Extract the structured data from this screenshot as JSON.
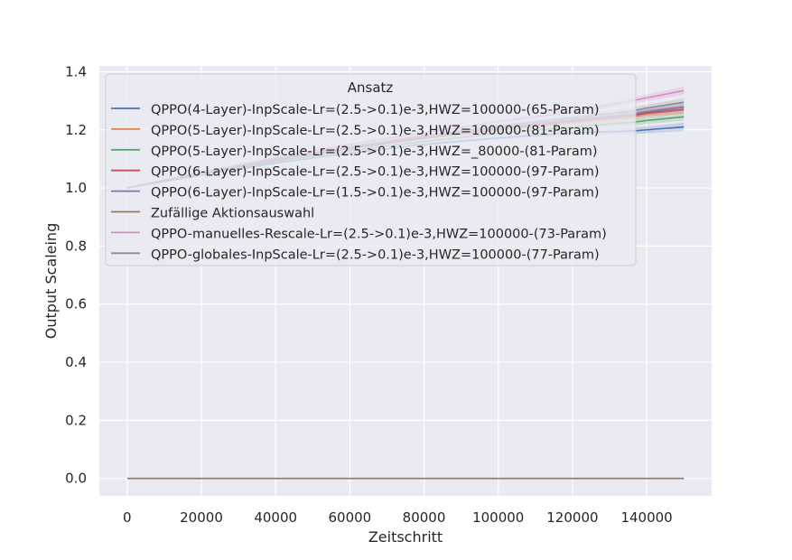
{
  "chart_data": {
    "type": "line",
    "xlabel": "Zeitschritt",
    "ylabel": "Output Scaleing",
    "xlim": [
      -7500,
      157500
    ],
    "ylim": [
      -0.06,
      1.42
    ],
    "xticks": [
      0,
      20000,
      40000,
      60000,
      80000,
      100000,
      120000,
      140000
    ],
    "yticks": [
      0.0,
      0.2,
      0.4,
      0.6,
      0.8,
      1.0,
      1.2,
      1.4
    ],
    "xtick_labels": [
      "0",
      "20000",
      "40000",
      "60000",
      "80000",
      "100000",
      "120000",
      "140000"
    ],
    "ytick_labels": [
      "0.0",
      "0.2",
      "0.4",
      "0.6",
      "0.8",
      "1.0",
      "1.2",
      "1.4"
    ],
    "grid": true,
    "legend": {
      "title": "Ansatz",
      "placement": "top-left"
    },
    "x": [
      0,
      20000,
      40000,
      60000,
      80000,
      100000,
      120000,
      136000,
      140000,
      150000
    ],
    "series": [
      {
        "name": "QPPO(4-Layer)-InpScale-Lr=(2.5->0.1)e-3,HWZ=100000-(65-Param)",
        "color": "#4c72b0",
        "values": [
          1.0,
          1.045,
          1.085,
          1.12,
          1.15,
          1.172,
          1.19,
          1.196,
          1.2,
          1.21
        ]
      },
      {
        "name": "QPPO(5-Layer)-InpScale-Lr=(2.5->0.1)e-3,HWZ=100000-(81-Param)",
        "color": "#dd8452",
        "values": [
          1.0,
          1.05,
          1.095,
          1.135,
          1.17,
          1.2,
          1.225,
          1.245,
          1.255,
          1.27
        ]
      },
      {
        "name": "QPPO(5-Layer)-InpScale-Lr=(2.5->0.1)e-3,HWZ=_80000-(81-Param)",
        "color": "#55a868",
        "values": [
          1.0,
          1.048,
          1.09,
          1.128,
          1.16,
          1.188,
          1.21,
          1.226,
          1.232,
          1.245
        ]
      },
      {
        "name": "QPPO(6-Layer)-InpScale-Lr=(2.5->0.1)e-3,HWZ=100000-(97-Param)",
        "color": "#c44e52",
        "values": [
          1.0,
          1.05,
          1.095,
          1.136,
          1.172,
          1.203,
          1.23,
          1.25,
          1.258,
          1.27
        ]
      },
      {
        "name": "QPPO(6-Layer)-InpScale-Lr=(1.5->0.1)e-3,HWZ=100000-(97-Param)",
        "color": "#8172b3",
        "values": [
          1.0,
          1.05,
          1.096,
          1.138,
          1.175,
          1.207,
          1.234,
          1.253,
          1.262,
          1.278
        ]
      },
      {
        "name": "Zufällige Aktionsauswahl",
        "color": "#937860",
        "values": [
          0,
          0,
          0,
          0,
          0,
          0,
          0,
          0,
          0,
          0
        ]
      },
      {
        "name": "QPPO-manuelles-Rescale-Lr=(2.5->0.1)e-3,HWZ=100000-(73-Param)",
        "color": "#da8bc3",
        "values": [
          1.0,
          1.055,
          1.105,
          1.15,
          1.19,
          1.228,
          1.262,
          1.3,
          1.31,
          1.335
        ]
      },
      {
        "name": "QPPO-globales-InpScale-Lr=(2.5->0.1)e-3,HWZ=100000-(77-Param)",
        "color": "#8c8c8c",
        "values": [
          1.0,
          1.052,
          1.1,
          1.142,
          1.18,
          1.213,
          1.242,
          1.265,
          1.275,
          1.295
        ]
      }
    ]
  }
}
